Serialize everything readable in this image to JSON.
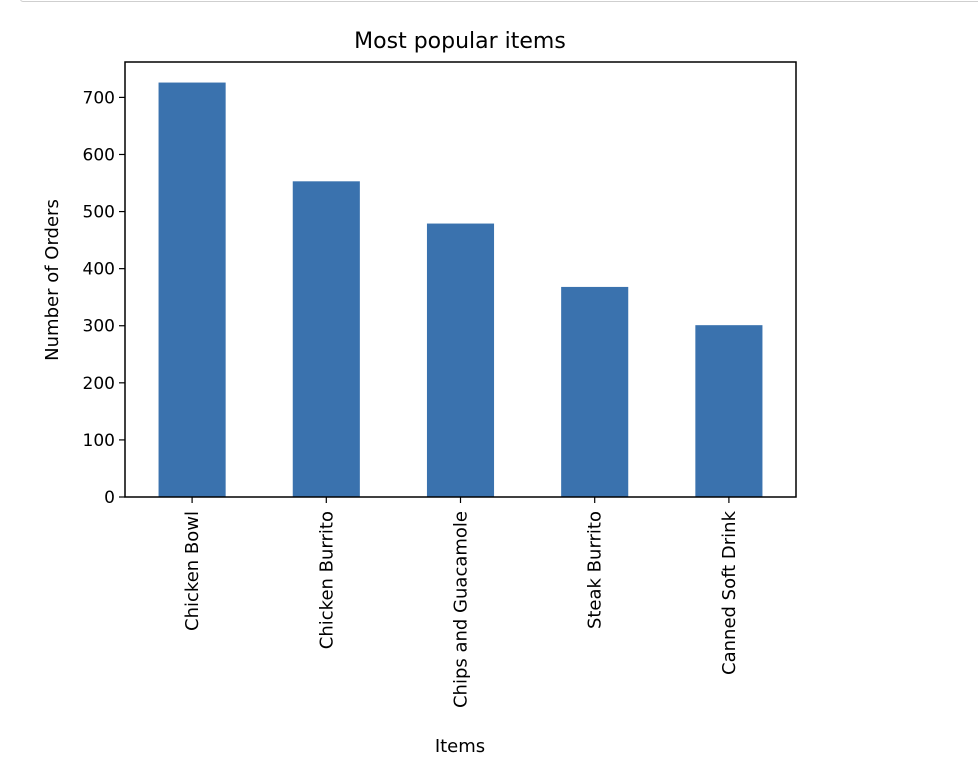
{
  "chart_data": {
    "type": "bar",
    "title": "Most popular items",
    "xlabel": "Items",
    "ylabel": "Number of Orders",
    "categories": [
      "Chicken Bowl",
      "Chicken Burrito",
      "Chips and Guacamole",
      "Steak Burrito",
      "Canned Soft Drink"
    ],
    "values": [
      726,
      553,
      479,
      368,
      301
    ],
    "ylim": [
      0,
      762
    ],
    "yticks": [
      "0",
      "100",
      "200",
      "300",
      "400",
      "500",
      "600",
      "700"
    ],
    "bar_color": "#3a72ae",
    "grid": false,
    "legend": "none"
  }
}
